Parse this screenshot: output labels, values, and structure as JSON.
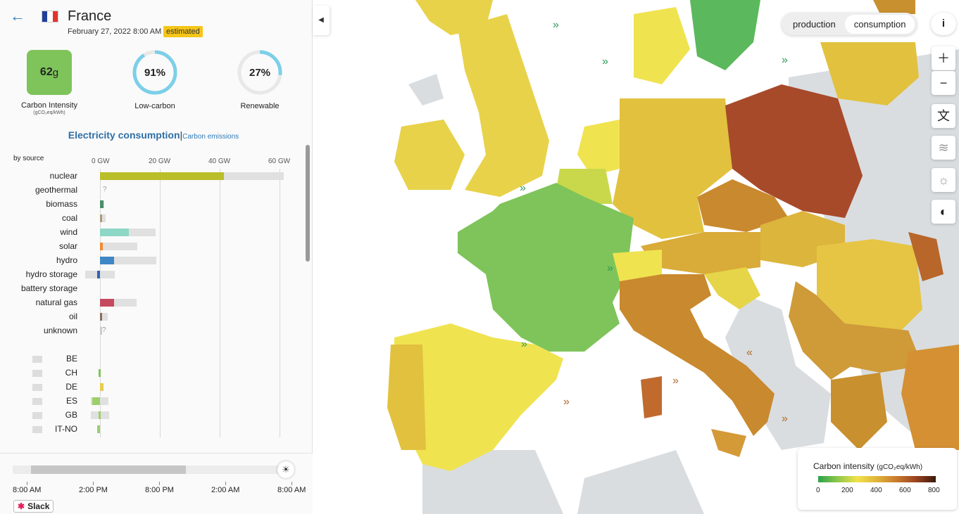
{
  "header": {
    "country": "France",
    "datetime": "February 27, 2022 8:00 AM",
    "badge": "estimated",
    "flag_colors": [
      "#1f3f9a",
      "#ffffff",
      "#e2342c"
    ]
  },
  "metrics": {
    "carbon_intensity": {
      "value": "62",
      "unit": "g",
      "label": "Carbon Intensity",
      "sublabel": "(gCO₂eq/kWh)",
      "color": "#7ec45a"
    },
    "low_carbon": {
      "value": "91%",
      "fraction": 0.91,
      "label": "Low-carbon"
    },
    "renewable": {
      "value": "27%",
      "fraction": 0.27,
      "label": "Renewable"
    },
    "ring_color": "#7ccfe8"
  },
  "tabs": {
    "consumption": "Electricity consumption",
    "separator": "|",
    "emissions": "Carbon emissions"
  },
  "chart": {
    "by_source_label": "by source",
    "axis_ticks": [
      "0 GW",
      "20 GW",
      "40 GW",
      "60 GW"
    ]
  },
  "chart_data": {
    "type": "bar",
    "xlabel": "",
    "xlim": [
      0,
      60
    ],
    "units": "GW",
    "sources": [
      {
        "name": "nuclear",
        "value": 41.5,
        "capacity": 61.4,
        "color": "#b9be2a"
      },
      {
        "name": "geothermal",
        "value": null,
        "capacity": null,
        "unknown": true
      },
      {
        "name": "biomass",
        "value": 1.1,
        "capacity": 1.4,
        "color": "#4a8f6a"
      },
      {
        "name": "coal",
        "value": 0.4,
        "capacity": 1.8,
        "color": "#ad9b78"
      },
      {
        "name": "wind",
        "value": 9.6,
        "capacity": 18.6,
        "color": "#8ed6c6"
      },
      {
        "name": "solar",
        "value": 1.0,
        "capacity": 12.5,
        "color": "#f08a33"
      },
      {
        "name": "hydro",
        "value": 4.6,
        "capacity": 18.8,
        "color": "#3f87c4"
      },
      {
        "name": "hydro storage",
        "value": -1.0,
        "capacity_pos": 5.0,
        "capacity_neg": -5.0,
        "color": "#2f63b8"
      },
      {
        "name": "battery storage",
        "value": 0,
        "capacity": 0
      },
      {
        "name": "natural gas",
        "value": 4.6,
        "capacity": 12.3,
        "color": "#c64a5e"
      },
      {
        "name": "oil",
        "value": 0.1,
        "capacity": 2.6,
        "color": "#8a6e5a"
      },
      {
        "name": "unknown",
        "value": 0.5,
        "capacity": 0.5,
        "unknown": true
      }
    ],
    "exchanges": [
      {
        "code": "BE",
        "value": 0,
        "color": "#7ec45a"
      },
      {
        "code": "CH",
        "value": -0.5,
        "color": "#7ec45a"
      },
      {
        "code": "DE",
        "value": 1.2,
        "color": "#e8cc50"
      },
      {
        "code": "ES",
        "value": -2.5,
        "capacity_pos": 2.8,
        "capacity_neg": -3.0,
        "color": "#9bd06a"
      },
      {
        "code": "GB",
        "value": -0.5,
        "capacity_pos": 3.0,
        "capacity_neg": -3.0,
        "color": "#9bd06a"
      },
      {
        "code": "IT-NO",
        "value": -1.0,
        "color": "#9bd06a"
      }
    ]
  },
  "timeline": {
    "labels": [
      "8:00 AM",
      "2:00 PM",
      "8:00 PM",
      "2:00 AM",
      "8:00 AM"
    ],
    "selected_start": 0.07,
    "selected_end": 0.65
  },
  "slack_label": "Slack",
  "map": {
    "toggle": {
      "production": "production",
      "consumption": "consumption",
      "active": "consumption"
    },
    "info_label": "i",
    "controls": [
      "zoom-in",
      "zoom-out",
      "language",
      "wind",
      "solar",
      "dark-mode"
    ],
    "legend": {
      "title": "Carbon intensity",
      "unit": "(gCO₂eq/kWh)",
      "ticks": [
        "0",
        "200",
        "400",
        "600",
        "800"
      ]
    }
  }
}
